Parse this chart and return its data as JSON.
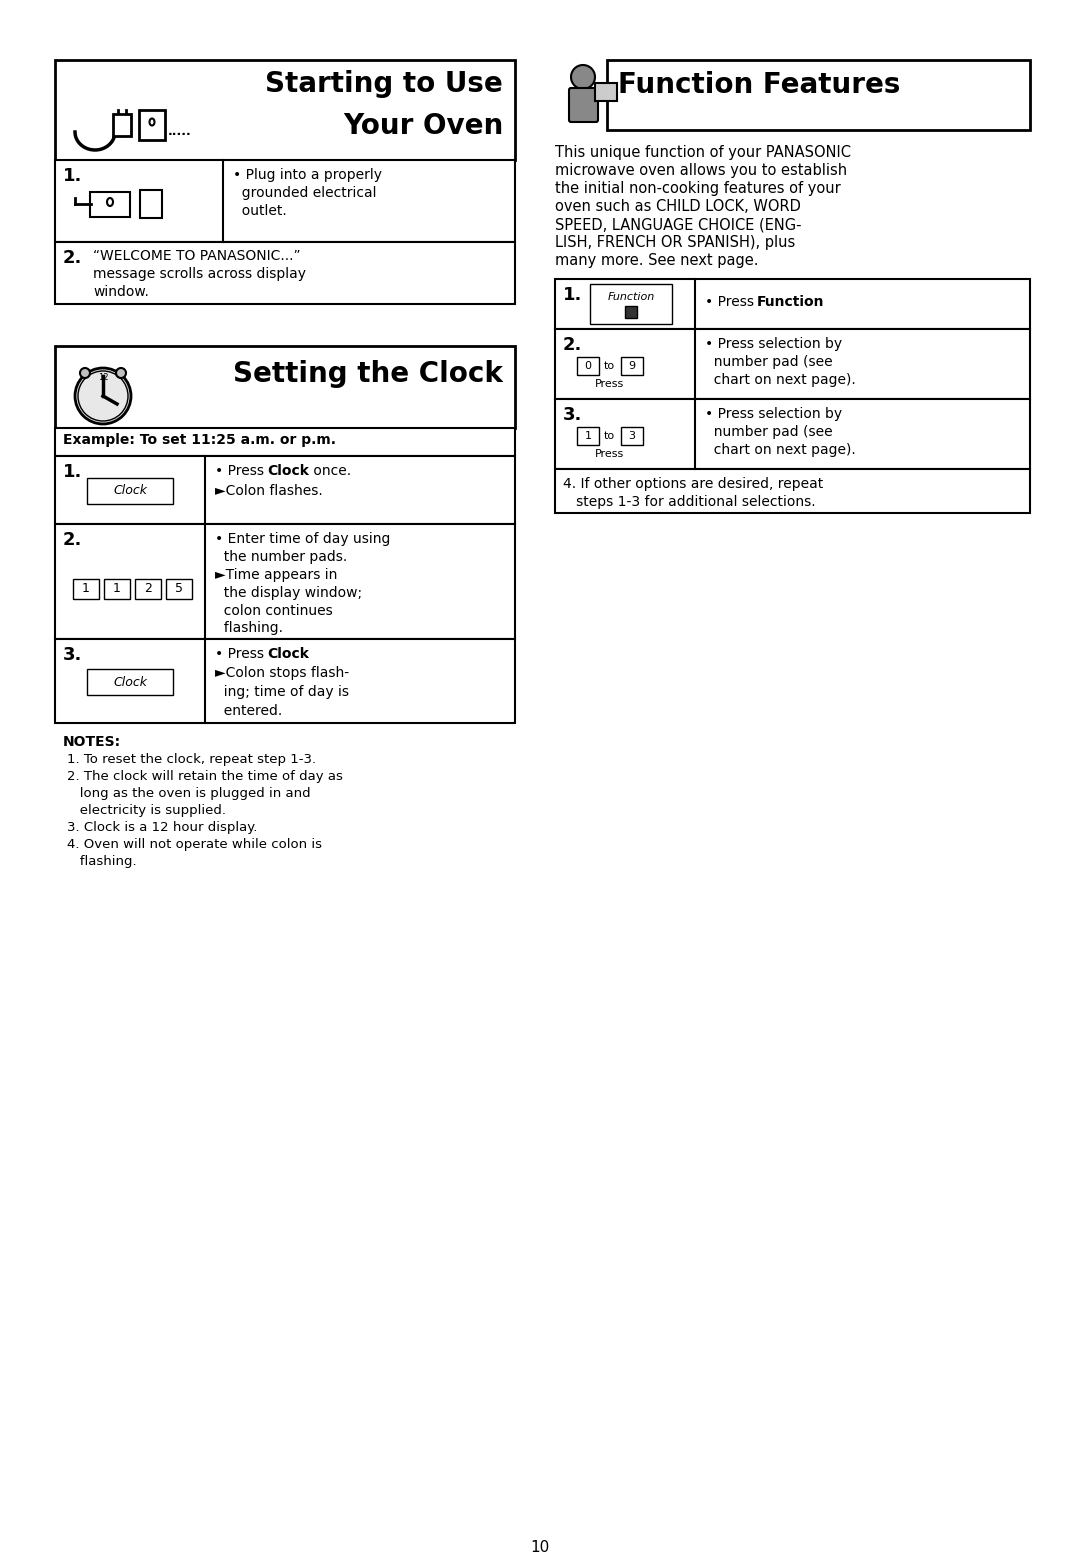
{
  "bg_color": "#ffffff",
  "page_number": "10",
  "left": {
    "oven_title1": "Starting to Use",
    "oven_title2": "Your Oven",
    "oven_dots": ".....",
    "step1_num": "1.",
    "step1_line1": "• Plug into a properly",
    "step1_line2": "  grounded electrical",
    "step1_line3": "  outlet.",
    "step2_num": "2.",
    "step2_line1": "“WELCOME TO PANASONIC...”",
    "step2_line2": "message scrolls across display",
    "step2_line3": "window.",
    "clock_title": "Setting the Clock",
    "example": "Example: To set 11:25 a.m. or p.m.",
    "cs1_num": "1.",
    "cs1_btn": "Clock",
    "cs1_line1": "• Press Clock once.",
    "cs1_line1_normal1": "• Press ",
    "cs1_line1_bold": "Clock",
    "cs1_line1_normal2": " once.",
    "cs1_line2": "►Colon flashes.",
    "cs2_num": "2.",
    "cs2_keys": [
      "1",
      "1",
      "2",
      "5"
    ],
    "cs2_line1": "• Enter time of day using",
    "cs2_line2": "  the number pads.",
    "cs2_line3": "►Time appears in",
    "cs2_line4": "  the display window;",
    "cs2_line5": "  colon continues",
    "cs2_line6": "  flashing.",
    "cs3_num": "3.",
    "cs3_btn": "Clock",
    "cs3_line1_n1": "• Press ",
    "cs3_line1_bold": "Clock",
    "cs3_line1_n2": ".",
    "cs3_line2": "►Colon stops flash-",
    "cs3_line3": "  ing; time of day is",
    "cs3_line4": "  entered.",
    "notes_title": "NOTES:",
    "note1": "1. To reset the clock, repeat step 1-3.",
    "note2a": "2. The clock will retain the time of day as",
    "note2b": "   long as the oven is plugged in and",
    "note2c": "   electricity is supplied.",
    "note3": "3. Clock is a 12 hour display.",
    "note4a": "4. Oven will not operate while colon is",
    "note4b": "   flashing."
  },
  "right": {
    "func_title": "Function Features",
    "desc_lines": [
      "This unique function of your PANASONIC",
      "microwave oven allows you to establish",
      "the initial non-cooking features of your",
      "oven such as CHILD LOCK, WORD",
      "SPEED, LANGUAGE CHOICE (ENG-",
      "LISH, FRENCH OR SPANISH), plus",
      "many more. See next page."
    ],
    "fs1_num": "1.",
    "fs1_btn_line1": "Function",
    "fs1_btn_line2": "■",
    "fs1_n1": "• Press ",
    "fs1_bold": "Function",
    "fs1_n2": ".",
    "fs2_num": "2.",
    "fs2_k1": "0",
    "fs2_k2": "9",
    "fs2_press": "Press",
    "fs2_line1": "• Press selection by",
    "fs2_line2": "  number pad (see",
    "fs2_line3": "  chart on next page).",
    "fs3_num": "3.",
    "fs3_k1": "1",
    "fs3_k2": "3",
    "fs3_press": "Press",
    "fs3_line1": "• Press selection by",
    "fs3_line2": "  number pad (see",
    "fs3_line3": "  chart on next page).",
    "fs4_line1": "4. If other options are desired, repeat",
    "fs4_line2": "   steps 1-3 for additional selections."
  }
}
